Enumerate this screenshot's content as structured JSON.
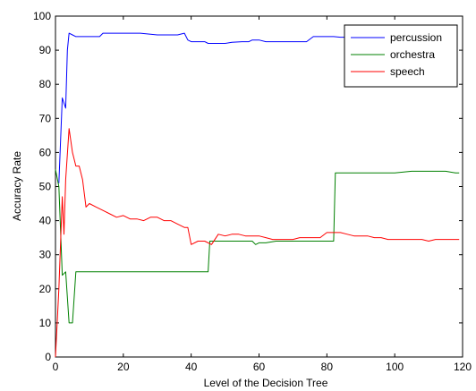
{
  "chart_data": {
    "type": "line",
    "title": "",
    "xlabel": "Level of the Decision Tree",
    "ylabel": "Accuracy Rate",
    "xlim": [
      0,
      120
    ],
    "ylim": [
      0,
      100
    ],
    "xticks": [
      0,
      20,
      40,
      60,
      80,
      100,
      120
    ],
    "yticks": [
      0,
      10,
      20,
      30,
      40,
      50,
      60,
      70,
      80,
      90,
      100
    ],
    "grid": false,
    "legend_position": "top-right",
    "series": [
      {
        "name": "percussion",
        "color": "#0000ff",
        "x": [
          1,
          2,
          3,
          3.5,
          4,
          5,
          6,
          8,
          10,
          12,
          13,
          14,
          15,
          20,
          25,
          30,
          33,
          36,
          38,
          39,
          40,
          42,
          44,
          45,
          46,
          50,
          52,
          55,
          57,
          58,
          60,
          62,
          64,
          66,
          68,
          70,
          72,
          74,
          76,
          78,
          80,
          82,
          84,
          86,
          88,
          90
        ],
        "y": [
          51,
          76,
          73,
          90,
          95,
          94.5,
          94,
          94,
          94,
          94,
          94,
          95,
          95,
          95,
          95,
          94.5,
          94.5,
          94.5,
          95,
          93,
          92.5,
          92.5,
          92.5,
          92,
          92,
          92,
          92.3,
          92.5,
          92.5,
          93,
          93,
          92.5,
          92.5,
          92.5,
          92.5,
          92.5,
          92.5,
          92.5,
          94,
          94,
          94,
          94,
          93.8,
          93.8,
          93.8,
          93.8
        ]
      },
      {
        "name": "orchestra",
        "color": "#008000",
        "x": [
          0,
          1,
          2,
          3,
          4,
          5,
          6,
          10,
          20,
          30,
          40,
          45,
          45.5,
          46,
          50,
          55,
          58,
          59,
          60,
          62,
          65,
          70,
          75,
          82,
          82.5,
          83,
          90,
          95,
          100,
          105,
          110,
          115,
          118,
          119
        ],
        "y": [
          55,
          50,
          24,
          25,
          10,
          10,
          25,
          25,
          25,
          25,
          25,
          25,
          34,
          34,
          34,
          34,
          34,
          33,
          33.5,
          33.5,
          34,
          34,
          34,
          34,
          54,
          54,
          54,
          54,
          54,
          54.5,
          54.5,
          54.5,
          54,
          54
        ]
      },
      {
        "name": "speech",
        "color": "#ff0000",
        "x": [
          0,
          1,
          2,
          2.5,
          3,
          4,
          5,
          6,
          7,
          8,
          9,
          10,
          12,
          14,
          16,
          18,
          20,
          22,
          24,
          26,
          28,
          30,
          32,
          34,
          36,
          38,
          39,
          40,
          42,
          44,
          46,
          48,
          50,
          52,
          54,
          56,
          58,
          60,
          62,
          64,
          66,
          68,
          70,
          72,
          74,
          76,
          78,
          80,
          82,
          84,
          86,
          88,
          90,
          92,
          94,
          96,
          98,
          100,
          104,
          108,
          110,
          112,
          114,
          116,
          118,
          119
        ],
        "y": [
          0,
          20,
          47,
          36,
          52,
          67,
          60,
          56,
          56,
          52,
          44,
          45,
          44,
          43,
          42,
          41,
          41.5,
          40.5,
          40.5,
          40,
          41,
          41,
          40,
          40,
          39,
          38,
          38,
          33,
          34,
          34,
          33,
          36,
          35.5,
          36,
          36,
          35.5,
          35.5,
          35.5,
          35,
          34.5,
          34.5,
          34.5,
          34.5,
          35,
          35,
          35,
          35,
          36.5,
          36.5,
          36.5,
          36,
          35.5,
          35.5,
          35.5,
          35,
          35,
          34.5,
          34.5,
          34.5,
          34.5,
          34,
          34.5,
          34.5,
          34.5,
          34.5,
          34.5
        ]
      }
    ]
  }
}
